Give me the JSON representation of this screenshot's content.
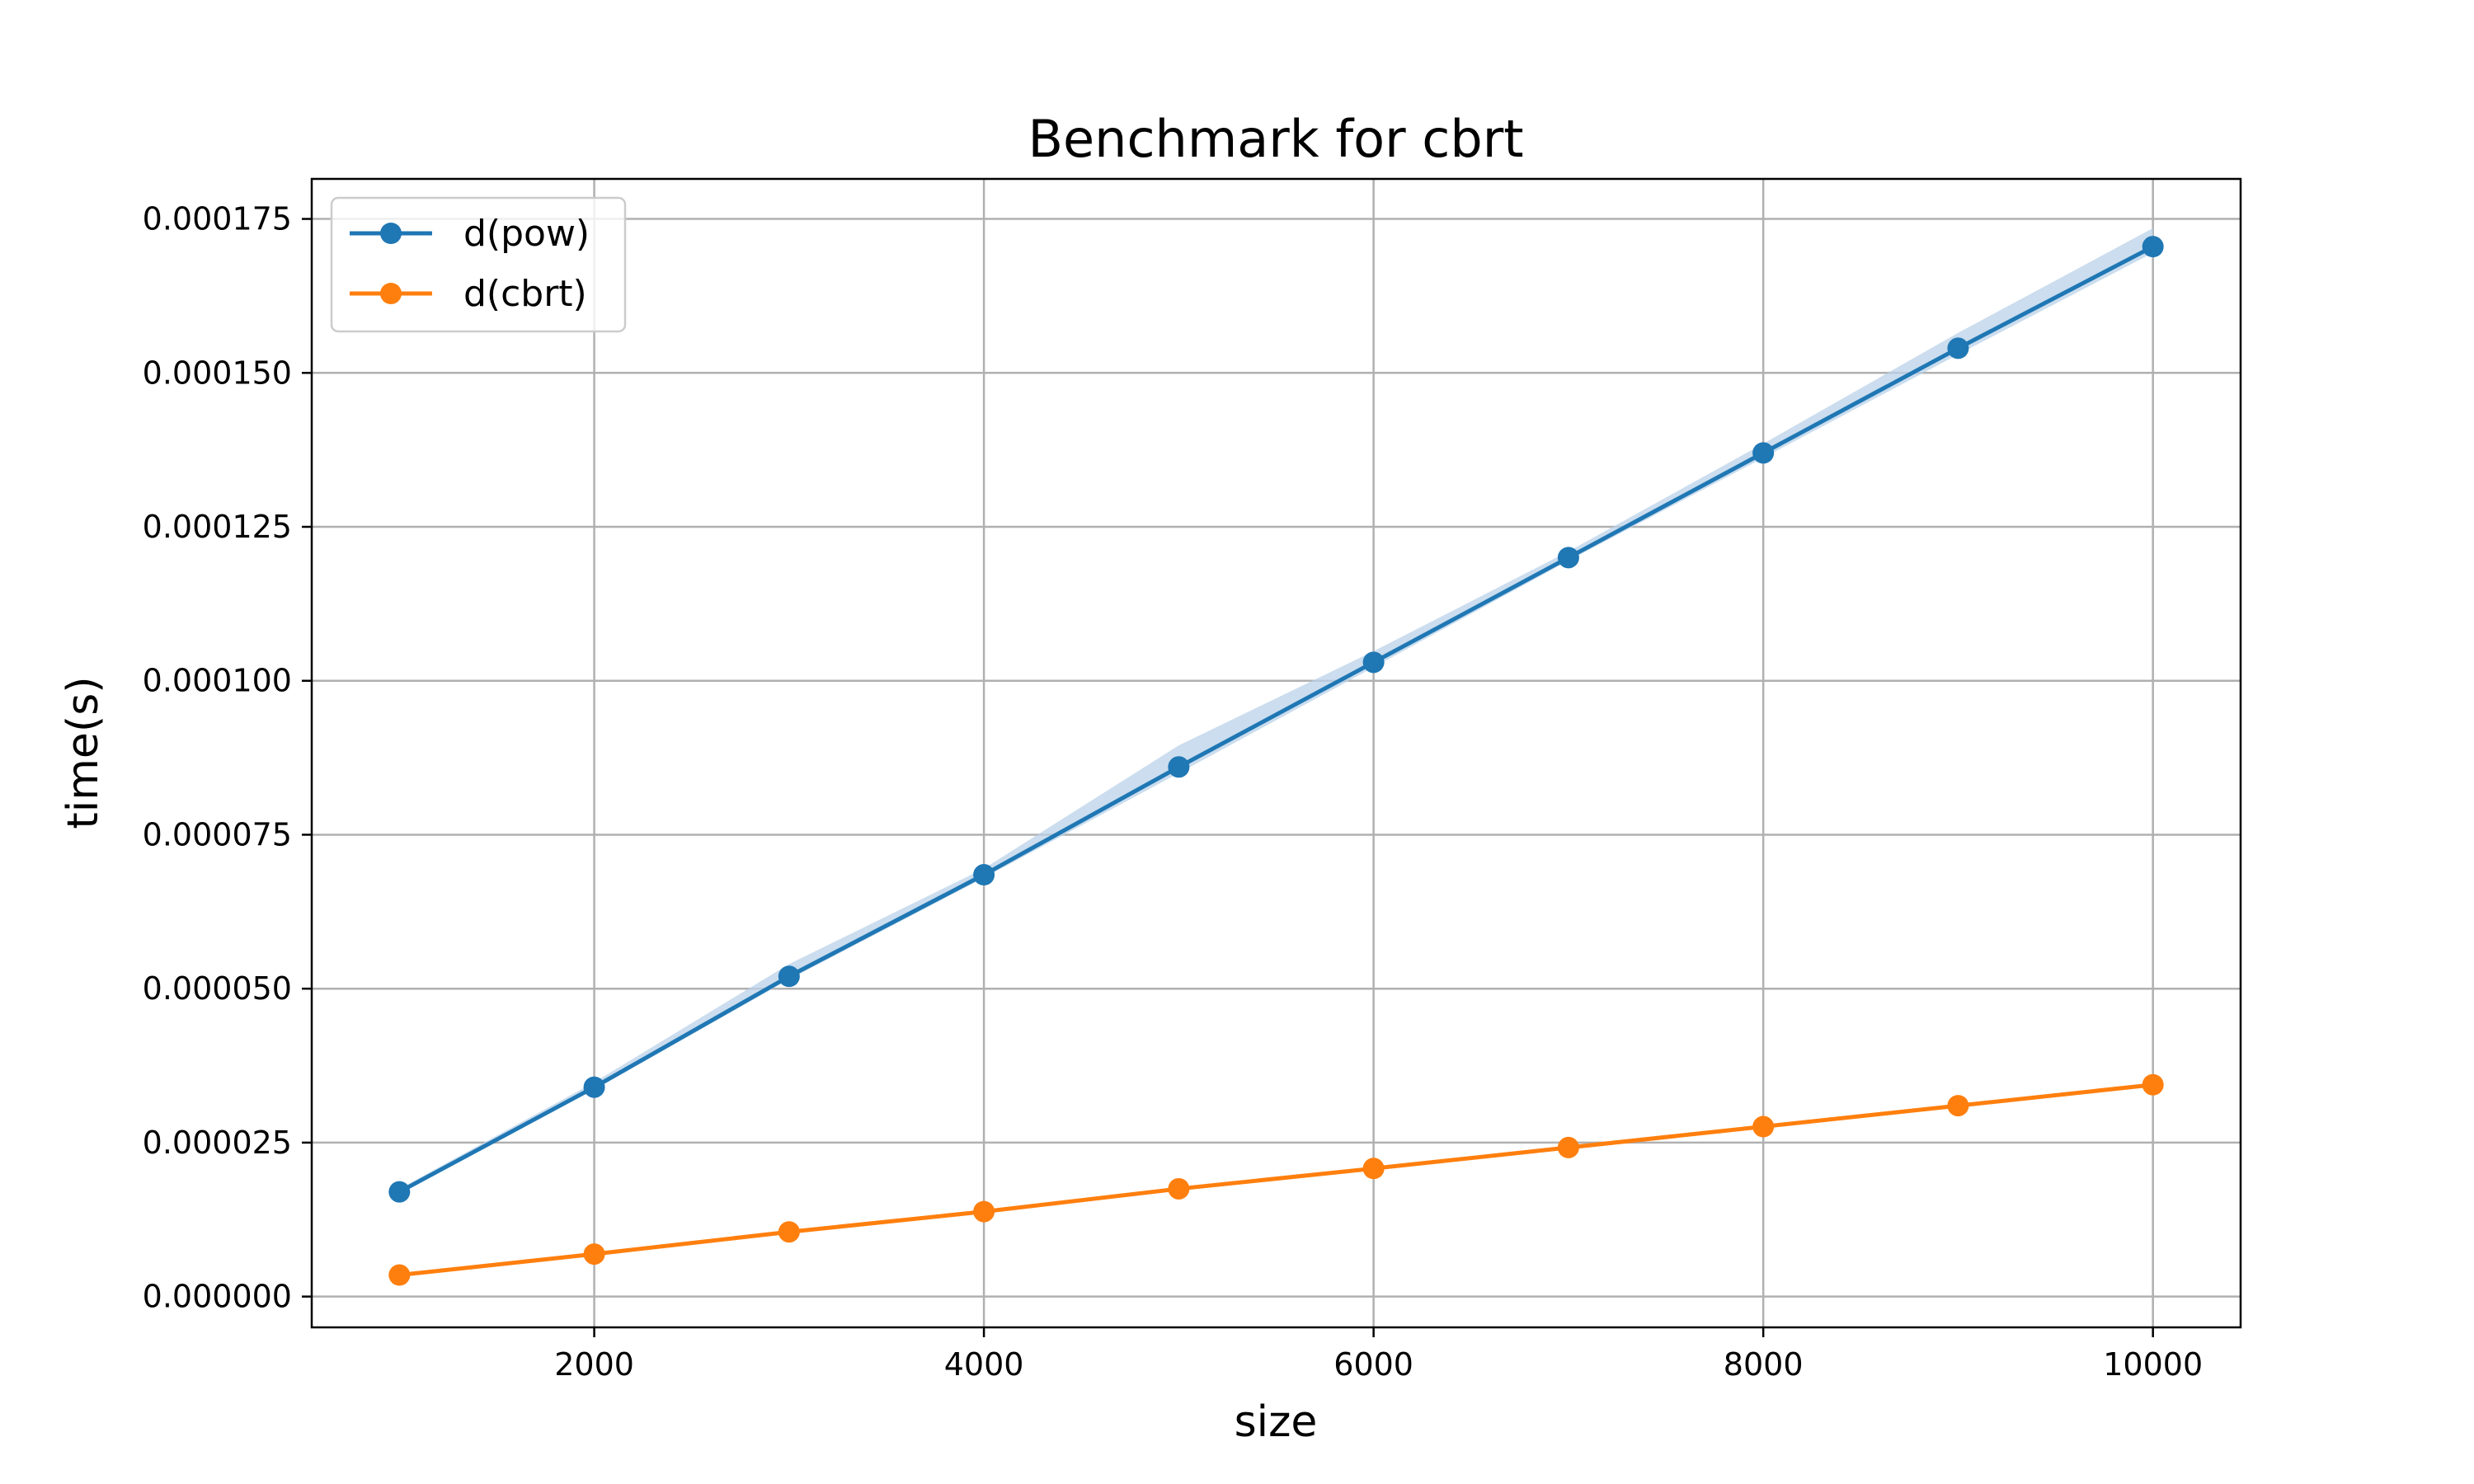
{
  "chart_data": {
    "type": "line",
    "title": "Benchmark for cbrt",
    "xlabel": "size",
    "ylabel": "time(s)",
    "x": [
      1000,
      2000,
      3000,
      4000,
      5000,
      6000,
      7000,
      8000,
      9000,
      10000
    ],
    "xlim": [
      550,
      10450
    ],
    "ylim": [
      -5e-06,
      0.0001815
    ],
    "x_ticks": [
      2000,
      4000,
      6000,
      8000,
      10000
    ],
    "x_tick_labels": [
      "2000",
      "4000",
      "6000",
      "8000",
      "10000"
    ],
    "y_ticks": [
      0,
      2.5e-05,
      5e-05,
      7.5e-05,
      0.0001,
      0.000125,
      0.00015,
      0.000175
    ],
    "y_tick_labels": [
      "0.000000",
      "0.000025",
      "0.000050",
      "0.000075",
      "0.000100",
      "0.000125",
      "0.000150",
      "0.000175"
    ],
    "grid": true,
    "legend_position": "top-left",
    "series": [
      {
        "name": "d(pow)",
        "color": "#1f77b4",
        "band_color": "#b9d1e8",
        "values": [
          1.7e-05,
          3.4e-05,
          5.2e-05,
          6.85e-05,
          8.6e-05,
          0.000103,
          0.00012,
          0.000137,
          0.000154,
          0.0001705
        ],
        "band_upper": [
          1.75e-05,
          3.48e-05,
          5.4e-05,
          6.95e-05,
          8.95e-05,
          0.0001048,
          0.000121,
          0.0001385,
          0.0001565,
          0.0001735
        ],
        "band_lower": [
          1.68e-05,
          3.36e-05,
          5.15e-05,
          6.8e-05,
          8.5e-05,
          0.0001022,
          0.0001195,
          0.0001362,
          0.000153,
          0.0001695
        ]
      },
      {
        "name": "d(cbrt)",
        "color": "#ff7f0e",
        "values": [
          3.5e-06,
          6.9e-06,
          1.05e-05,
          1.38e-05,
          1.75e-05,
          2.08e-05,
          2.42e-05,
          2.76e-05,
          3.1e-05,
          3.44e-05
        ]
      }
    ]
  }
}
